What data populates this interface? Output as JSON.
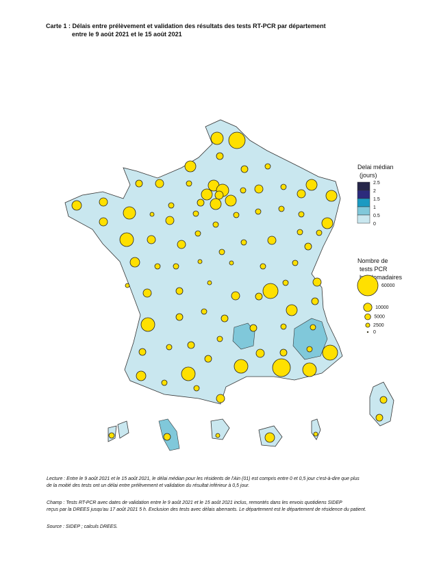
{
  "title": {
    "line1": "Carte 1 : Délais entre prélèvement et validation des résultats des tests RT-PCR par département",
    "line2": "entre le 9 août 2021 et le 15 août 2021"
  },
  "legend_delay": {
    "title_lines": [
      "Delai médian",
      "(jours)"
    ],
    "breaks": [
      2.5,
      2,
      1.5,
      1,
      0.5,
      0
    ],
    "colors": [
      "#26264a",
      "#2c2a7c",
      "#1b9ac2",
      "#80c8da",
      "#c9e7ef"
    ]
  },
  "legend_tests": {
    "title_lines": [
      "Nombre de",
      "tests PCR",
      "hebdomadaires"
    ],
    "values": [
      60000,
      10000,
      5000,
      2500,
      0
    ],
    "color": "#ffe000"
  },
  "notes": [
    [
      "Lecture : Entre le 9 août 2021 et le 15 août 2021, le délai médian pour les résidents de l'Ain (01) est compris entre 0 et 0,5 jour c'est-à-dire que plus",
      "de la moitié des tests ont un délai entre prélèvement et validation du résultat inférieur à 0,5 jour."
    ],
    [
      "Champ : Tests RT-PCR avec dates de validation entre le 9 août 2021 et le 15 août 2021 inclus, remontés dans les envois quotidiens SIDEP",
      "reçus par la DREES jusqu'au 17 août 2021 5 h. Exclusion des tests avec délais aberrants. Le département est le département de résidence du patient."
    ],
    [
      "Source : SIDEP ; calculs DREES."
    ]
  ]
}
